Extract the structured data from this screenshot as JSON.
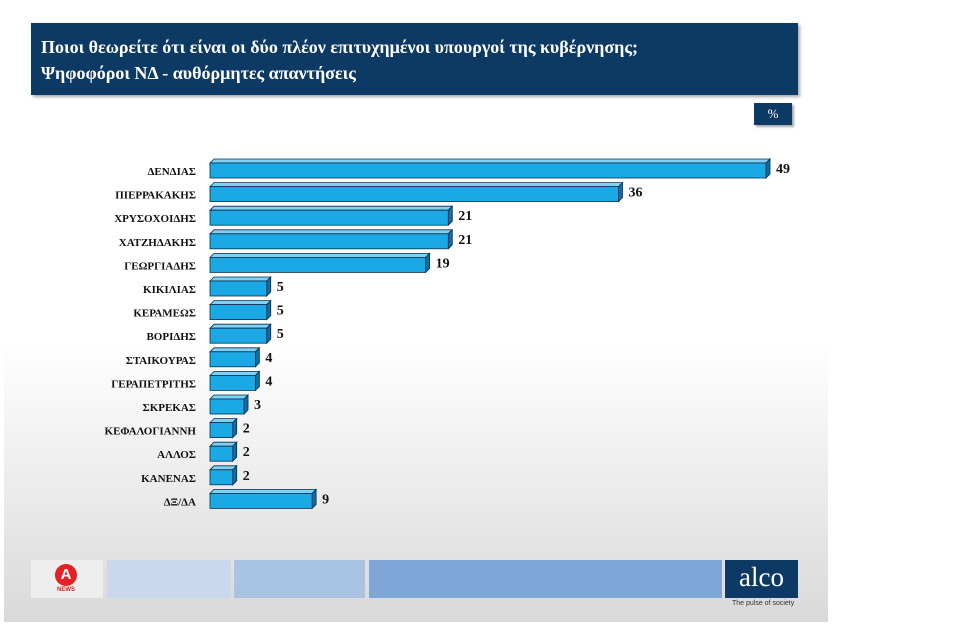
{
  "header": {
    "title_line1": "Ποιοι θεωρείτε ότι είναι οι δύο πλέον επιτυχημένοι υπουργοί της κυβέρνησης;",
    "title_line2": "Ψηφοφόροι ΝΔ - αυθόρμητες απαντήσεις"
  },
  "unit_label": "%",
  "colors": {
    "header_bg": "#0d3a64",
    "bar_front": "#1ba9e6",
    "bar_top": "#7fd1f3",
    "bar_side": "#0b6fa2",
    "bar_outline": "#0a2d4d"
  },
  "chart_data": {
    "type": "bar",
    "orientation": "horizontal",
    "title": "Ποιοι θεωρείτε ότι είναι οι δύο πλέον επιτυχημένοι υπουργοί της κυβέρνησης;",
    "subtitle": "Ψηφοφόροι ΝΔ - αυθόρμητες απαντήσεις",
    "unit": "%",
    "categories": [
      "ΔΕΝΔΙΑΣ",
      "ΠΙΕΡΡΑΚΑΚΗΣ",
      "ΧΡΥΣΟΧΟΙΔΗΣ",
      "ΧΑΤΖΗΔΑΚΗΣ",
      "ΓΕΩΡΓΙΑΔΗΣ",
      "ΚΙΚΙΛΙΑΣ",
      "ΚΕΡΑΜΕΩΣ",
      "ΒΟΡΙΔΗΣ",
      "ΣΤΑΙΚΟΥΡΑΣ",
      "ΓΕΡΑΠΕΤΡΙΤΗΣ",
      "ΣΚΡΕΚΑΣ",
      "ΚΕΦΑΛΟΓΙΑΝΝΗ",
      "ΑΛΛΟΣ",
      "ΚΑΝΕΝΑΣ",
      "ΔΞ/ΔΑ"
    ],
    "values": [
      49,
      36,
      21,
      21,
      19,
      5,
      5,
      5,
      4,
      4,
      3,
      2,
      2,
      2,
      9
    ],
    "xlim": [
      0,
      49
    ],
    "grid": false
  },
  "footer": {
    "brand": "alco",
    "tagline": "The pulse of society",
    "left_logo_text": "NEWS"
  }
}
